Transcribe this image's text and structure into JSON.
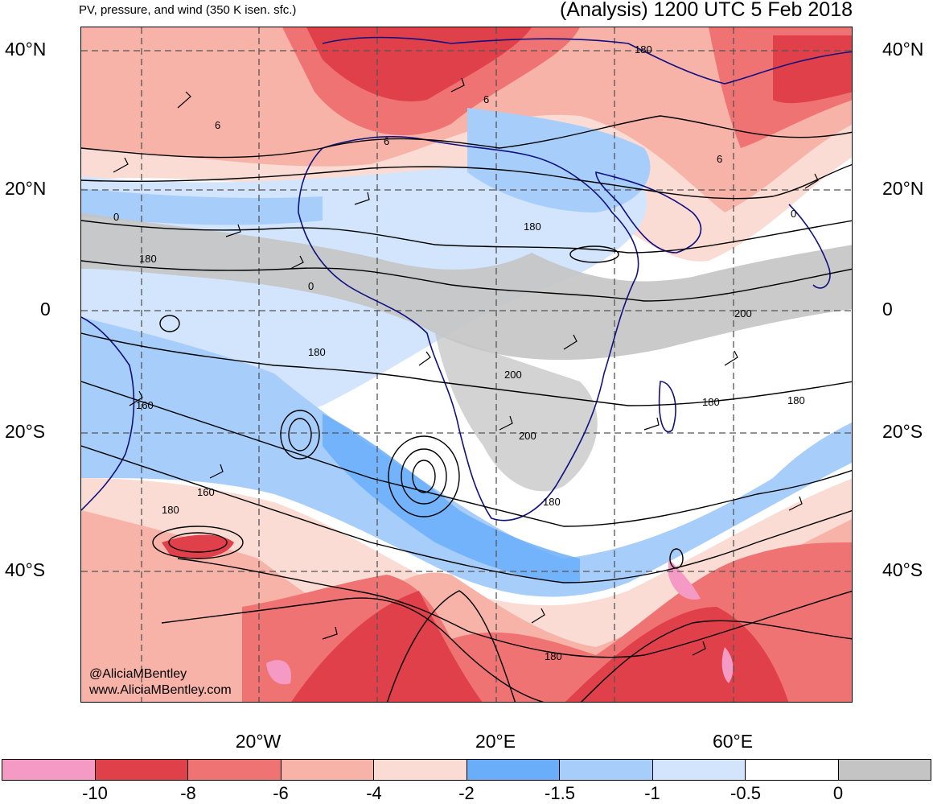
{
  "header": {
    "left_title": "PV, pressure, and wind (350 K isen. sfc.)",
    "right_title": "(Analysis) 1200 UTC 5 Feb 2018"
  },
  "axes": {
    "lat_labels": [
      "40°N",
      "20°N",
      "0",
      "20°S",
      "40°S"
    ],
    "lon_labels": [
      "20°W",
      "20°E",
      "60°E"
    ]
  },
  "contour_labels": [
    "180",
    "6",
    "6",
    "6",
    "6",
    "0",
    "180",
    "0",
    "180",
    "0",
    "200",
    "180",
    "200",
    "180",
    "200",
    "160",
    "180",
    "160",
    "180",
    "180",
    "180"
  ],
  "colorbar": {
    "colors": [
      "#f59ac4",
      "#e0404a",
      "#f07373",
      "#f8b3a8",
      "#fbdcd4",
      "#6aaefa",
      "#a7cdfb",
      "#d3e5fd",
      "#ffffff",
      "#c4c4c4"
    ],
    "labels": [
      "-10",
      "-8",
      "-6",
      "-4",
      "-2",
      "-1.5",
      "-1",
      "-0.5",
      "0"
    ]
  },
  "watermark": {
    "handle": "@AliciaMBentley",
    "site": "www.AliciaMBentley.com"
  }
}
